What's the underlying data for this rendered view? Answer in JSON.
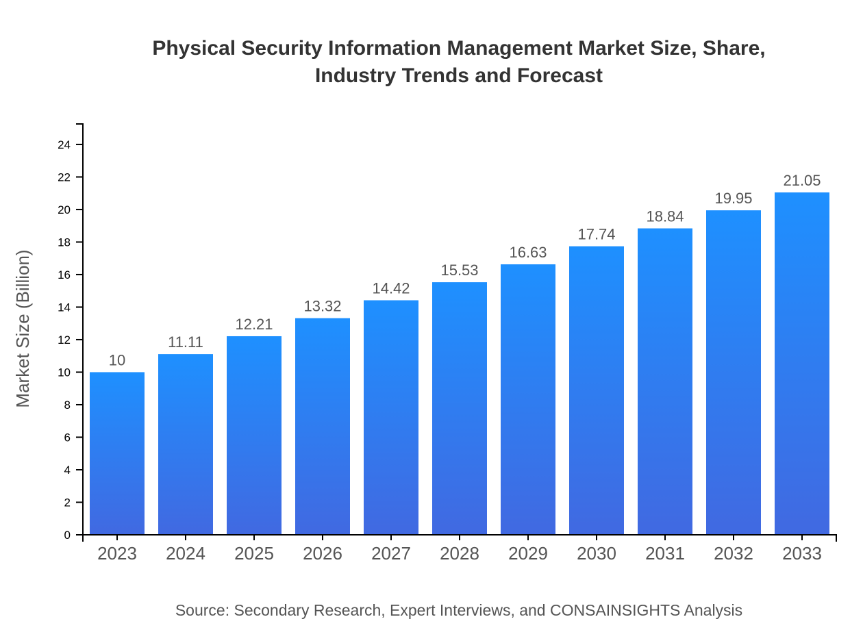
{
  "chart_data": {
    "type": "bar",
    "title_lines": [
      "Physical Security Information Management Market Size, Share,",
      "Industry Trends and Forecast"
    ],
    "categories": [
      "2023",
      "2024",
      "2025",
      "2026",
      "2027",
      "2028",
      "2029",
      "2030",
      "2031",
      "2032",
      "2033"
    ],
    "values": [
      10,
      11.11,
      12.21,
      13.32,
      14.42,
      15.53,
      16.63,
      17.74,
      18.84,
      19.95,
      21.05
    ],
    "data_labels": [
      "10",
      "11.11",
      "12.21",
      "13.32",
      "14.42",
      "15.53",
      "16.63",
      "17.74",
      "18.84",
      "19.95",
      "21.05"
    ],
    "xlabel": "",
    "ylabel": "Market Size (Billion)",
    "ylim": [
      0,
      25.26
    ],
    "yticks": [
      0,
      2,
      4,
      6,
      8,
      10,
      12,
      14,
      16,
      18,
      20,
      22,
      24
    ],
    "grid": false,
    "bar_gradient": {
      "top": "#1e90ff",
      "bottom": "#4169e1"
    },
    "source": "Source: Secondary Research, Expert Interviews, and CONSAINSIGHTS Analysis"
  }
}
